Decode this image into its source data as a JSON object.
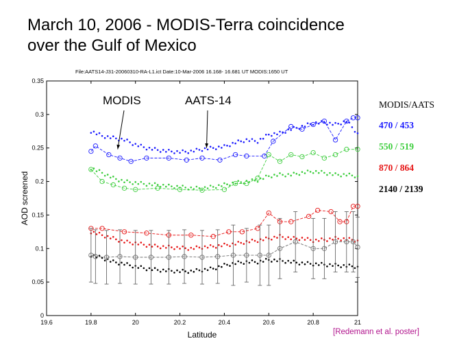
{
  "slide": {
    "title_line1": "March 10, 2006 - MODIS-Terra coincidence",
    "title_line2": "over the Gulf of Mexico",
    "file_info": "File:AATS14-J31-20060310-RA-L1.ict  Date:10-Mar-2006  16.168- 16.681 UT  MODIS:1650 UT",
    "credit": "[Redemann et al. poster]"
  },
  "legend": {
    "header": "MODIS/AATS",
    "items": [
      {
        "label": "470 / 453",
        "color": "#1a1aff"
      },
      {
        "label": "550 / 519",
        "color": "#3ccd3c"
      },
      {
        "label": "870 / 864",
        "color": "#e61414"
      },
      {
        "label": "2140 / 2139",
        "color": "#000000"
      }
    ]
  },
  "chart_data": {
    "type": "scatter",
    "title": "",
    "xlabel": "Latitude",
    "ylabel": "AOD screened",
    "xlim": [
      19.6,
      21.0
    ],
    "ylim": [
      0,
      0.35
    ],
    "xticks": [
      "19.6",
      "19.8",
      "20",
      "20.2",
      "20.4",
      "20.6",
      "20.8",
      "21"
    ],
    "yticks": [
      "0",
      "0.05",
      "0.1",
      "0.15",
      "0.2",
      "0.25",
      "0.3",
      "0.35"
    ],
    "annotations": [
      {
        "text": "MODIS",
        "points_to": [
          19.92,
          0.245
        ]
      },
      {
        "text": "AATS-14",
        "points_to": [
          20.32,
          0.247
        ]
      }
    ],
    "series": [
      {
        "name": "AATS 453",
        "kind": "points",
        "color": "#1a1aff",
        "x": [
          19.8,
          19.85,
          19.9,
          19.95,
          20.0,
          20.05,
          20.1,
          20.15,
          20.2,
          20.25,
          20.3,
          20.35,
          20.4,
          20.45,
          20.5,
          20.55,
          20.6,
          20.65,
          20.7,
          20.75,
          20.8,
          20.85,
          20.9,
          20.95,
          21.0
        ],
        "y": [
          0.275,
          0.268,
          0.265,
          0.262,
          0.255,
          0.25,
          0.247,
          0.245,
          0.244,
          0.245,
          0.248,
          0.25,
          0.252,
          0.258,
          0.262,
          0.26,
          0.27,
          0.272,
          0.278,
          0.282,
          0.287,
          0.288,
          0.285,
          0.29,
          0.272
        ]
      },
      {
        "name": "MODIS 470",
        "kind": "line-marker",
        "color": "#1a1aff",
        "x": [
          19.8,
          19.82,
          19.88,
          19.93,
          19.98,
          20.05,
          20.15,
          20.23,
          20.3,
          20.38,
          20.45,
          20.5,
          20.58,
          20.62,
          20.7,
          20.75,
          20.8,
          20.85,
          20.9,
          20.95,
          20.98,
          21.0
        ],
        "y": [
          0.245,
          0.253,
          0.24,
          0.235,
          0.23,
          0.235,
          0.235,
          0.232,
          0.235,
          0.232,
          0.24,
          0.238,
          0.238,
          0.26,
          0.282,
          0.278,
          0.285,
          0.29,
          0.262,
          0.29,
          0.295,
          0.295
        ]
      },
      {
        "name": "AATS 519",
        "kind": "points",
        "color": "#3ccd3c",
        "x": [
          19.8,
          19.85,
          19.9,
          19.95,
          20.0,
          20.05,
          20.1,
          20.15,
          20.2,
          20.25,
          20.3,
          20.35,
          20.4,
          20.45,
          20.5,
          20.55,
          20.6,
          20.65,
          20.7,
          20.75,
          20.8,
          20.85,
          20.9,
          20.95,
          21.0
        ],
        "y": [
          0.22,
          0.213,
          0.205,
          0.2,
          0.198,
          0.196,
          0.195,
          0.193,
          0.192,
          0.19,
          0.19,
          0.192,
          0.195,
          0.198,
          0.2,
          0.202,
          0.208,
          0.21,
          0.21,
          0.213,
          0.215,
          0.213,
          0.21,
          0.21,
          0.208
        ]
      },
      {
        "name": "MODIS 550",
        "kind": "line-marker",
        "color": "#3ccd3c",
        "x": [
          19.8,
          19.85,
          19.9,
          19.95,
          20.0,
          20.1,
          20.2,
          20.3,
          20.4,
          20.45,
          20.5,
          20.55,
          20.6,
          20.65,
          20.7,
          20.75,
          20.8,
          20.85,
          20.9,
          20.95,
          21.0
        ],
        "y": [
          0.218,
          0.2,
          0.195,
          0.19,
          0.188,
          0.19,
          0.188,
          0.187,
          0.188,
          0.197,
          0.197,
          0.205,
          0.24,
          0.23,
          0.24,
          0.237,
          0.243,
          0.235,
          0.24,
          0.248,
          0.248
        ]
      },
      {
        "name": "AATS 864",
        "kind": "points",
        "color": "#e61414",
        "x": [
          19.8,
          19.85,
          19.9,
          19.95,
          20.0,
          20.05,
          20.1,
          20.15,
          20.2,
          20.25,
          20.3,
          20.35,
          20.4,
          20.45,
          20.5,
          20.55,
          20.6,
          20.65,
          20.7,
          20.75,
          20.8,
          20.85,
          20.9,
          20.95,
          21.0
        ],
        "y": [
          0.125,
          0.12,
          0.115,
          0.11,
          0.108,
          0.105,
          0.103,
          0.102,
          0.101,
          0.1,
          0.102,
          0.103,
          0.105,
          0.107,
          0.11,
          0.112,
          0.115,
          0.118,
          0.115,
          0.115,
          0.112,
          0.113,
          0.115,
          0.114,
          0.112
        ]
      },
      {
        "name": "MODIS 870",
        "kind": "line-marker",
        "color": "#e61414",
        "x": [
          19.8,
          19.85,
          19.95,
          20.05,
          20.15,
          20.25,
          20.35,
          20.42,
          20.48,
          20.55,
          20.6,
          20.65,
          20.7,
          20.78,
          20.82,
          20.88,
          20.92,
          20.95,
          20.98,
          21.0
        ],
        "y": [
          0.13,
          0.13,
          0.125,
          0.123,
          0.12,
          0.12,
          0.118,
          0.125,
          0.125,
          0.13,
          0.153,
          0.14,
          0.14,
          0.148,
          0.157,
          0.155,
          0.14,
          0.14,
          0.163,
          0.163
        ]
      },
      {
        "name": "AATS 2139",
        "kind": "points",
        "color": "#000000",
        "x": [
          19.8,
          19.85,
          19.9,
          19.95,
          20.0,
          20.05,
          20.1,
          20.15,
          20.2,
          20.25,
          20.3,
          20.35,
          20.4,
          20.45,
          20.5,
          20.55,
          20.6,
          20.65,
          20.7,
          20.75,
          20.8,
          20.85,
          20.9,
          20.95,
          21.0
        ],
        "y": [
          0.09,
          0.086,
          0.08,
          0.077,
          0.073,
          0.07,
          0.068,
          0.067,
          0.066,
          0.066,
          0.068,
          0.07,
          0.075,
          0.078,
          0.08,
          0.08,
          0.083,
          0.082,
          0.08,
          0.078,
          0.077,
          0.076,
          0.075,
          0.074,
          0.073
        ]
      },
      {
        "name": "MODIS 2140",
        "kind": "line-marker",
        "color": "#707070",
        "x": [
          19.8,
          19.82,
          19.87,
          19.93,
          20.0,
          20.07,
          20.15,
          20.22,
          20.3,
          20.37,
          20.44,
          20.5,
          20.56,
          20.6,
          20.65,
          20.72,
          20.8,
          20.85,
          20.9,
          20.95,
          20.98,
          21.0
        ],
        "y": [
          0.09,
          0.088,
          0.087,
          0.088,
          0.087,
          0.087,
          0.087,
          0.088,
          0.087,
          0.088,
          0.09,
          0.09,
          0.09,
          0.09,
          0.1,
          0.11,
          0.1,
          0.1,
          0.11,
          0.11,
          0.11,
          0.102
        ],
        "err": [
          0.04,
          0.04,
          0.04,
          0.04,
          0.04,
          0.04,
          0.04,
          0.04,
          0.04,
          0.04,
          0.045,
          0.04,
          0.045,
          0.045,
          0.045,
          0.045,
          0.045,
          0.045,
          0.045,
          0.045,
          0.045,
          0.045
        ]
      }
    ]
  }
}
